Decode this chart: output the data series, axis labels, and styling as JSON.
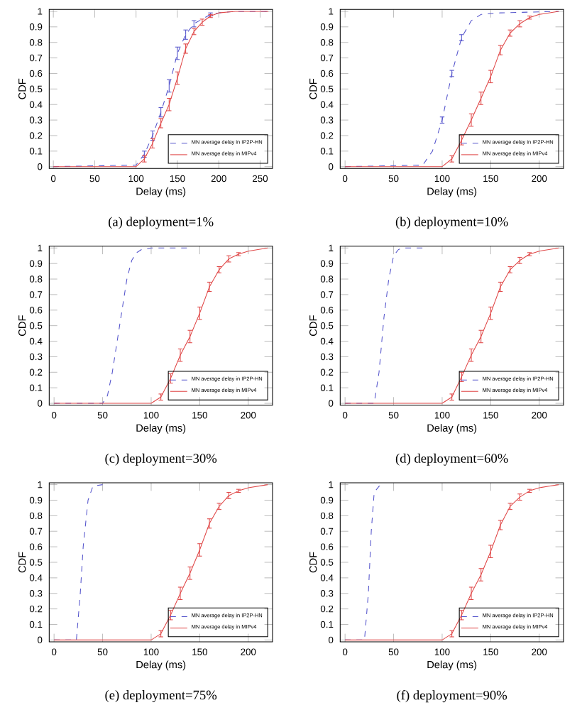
{
  "chart_data": [
    {
      "type": "line",
      "annotations": [
        "(a) deployment=1%"
      ],
      "xlabel": "Delay (ms)",
      "ylabel": "CDF",
      "xlim": [
        -5,
        265
      ],
      "xticks": [
        0,
        50,
        100,
        150,
        200,
        250
      ],
      "ylim": [
        0,
        1
      ],
      "yticks": [
        0,
        0.1,
        0.2,
        0.3,
        0.4,
        0.5,
        0.6,
        0.7,
        0.8,
        0.9,
        1
      ],
      "legend": "bottom right",
      "series": [
        {
          "name": "MN average delay in IP2P-HN",
          "color": "#5555cc",
          "line_style": "dashed",
          "x": [
            0,
            100,
            110,
            120,
            130,
            140,
            150,
            160,
            170,
            180,
            190,
            200,
            220,
            260
          ],
          "values": [
            0,
            0.01,
            0.08,
            0.2,
            0.35,
            0.52,
            0.73,
            0.85,
            0.92,
            0.95,
            0.98,
            0.99,
            1,
            1
          ],
          "errors": [
            null,
            null,
            0.02,
            0.03,
            0.03,
            0.04,
            0.04,
            0.03,
            0.02,
            null,
            0.01,
            null,
            null,
            null
          ]
        },
        {
          "name": "MN average delay in MIPv4",
          "color": "#e04848",
          "line_style": "solid",
          "x": [
            0,
            100,
            110,
            120,
            130,
            140,
            150,
            160,
            170,
            180,
            190,
            200,
            220,
            260
          ],
          "values": [
            0,
            0,
            0.05,
            0.15,
            0.28,
            0.4,
            0.57,
            0.76,
            0.87,
            0.93,
            0.97,
            0.99,
            1,
            1
          ],
          "errors": [
            null,
            null,
            0.02,
            0.03,
            0.03,
            0.04,
            0.04,
            0.03,
            0.02,
            0.02,
            0.01,
            null,
            null,
            null
          ]
        }
      ]
    },
    {
      "type": "line",
      "annotations": [
        "(b) deployment=10%"
      ],
      "xlabel": "Delay (ms)",
      "ylabel": "CDF",
      "xlim": [
        -5,
        225
      ],
      "xticks": [
        0,
        50,
        100,
        150,
        200
      ],
      "ylim": [
        0,
        1
      ],
      "yticks": [
        0,
        0.1,
        0.2,
        0.3,
        0.4,
        0.5,
        0.6,
        0.7,
        0.8,
        0.9,
        1
      ],
      "legend": "bottom right",
      "series": [
        {
          "name": "MN average delay in IP2P-HN",
          "color": "#5555cc",
          "line_style": "dashed",
          "x": [
            0,
            80,
            90,
            100,
            110,
            120,
            130,
            140,
            160,
            220
          ],
          "values": [
            0,
            0.01,
            0.1,
            0.3,
            0.6,
            0.83,
            0.94,
            0.98,
            0.99,
            1
          ],
          "errors": [
            null,
            null,
            null,
            0.02,
            0.02,
            0.02,
            null,
            null,
            null,
            null
          ]
        },
        {
          "name": "MN average delay in MIPv4",
          "color": "#e04848",
          "line_style": "solid",
          "x": [
            0,
            100,
            110,
            120,
            130,
            140,
            150,
            160,
            170,
            180,
            190,
            200,
            220
          ],
          "values": [
            0,
            0,
            0.05,
            0.17,
            0.3,
            0.44,
            0.58,
            0.75,
            0.86,
            0.92,
            0.96,
            0.98,
            1
          ],
          "errors": [
            null,
            null,
            0.02,
            0.03,
            0.04,
            0.04,
            0.04,
            0.03,
            0.02,
            0.02,
            0.01,
            null,
            null
          ]
        }
      ]
    },
    {
      "type": "line",
      "annotations": [
        "(c) deployment=30%"
      ],
      "xlabel": "Delay (ms)",
      "ylabel": "CDF",
      "xlim": [
        -5,
        225
      ],
      "xticks": [
        0,
        50,
        100,
        150,
        200
      ],
      "ylim": [
        0,
        1
      ],
      "yticks": [
        0,
        0.1,
        0.2,
        0.3,
        0.4,
        0.5,
        0.6,
        0.7,
        0.8,
        0.9,
        1
      ],
      "legend": "bottom right",
      "series": [
        {
          "name": "MN average delay in IP2P-HN",
          "color": "#5555cc",
          "line_style": "dashed",
          "x": [
            0,
            50,
            55,
            60,
            65,
            70,
            75,
            80,
            85,
            90,
            100,
            140
          ],
          "values": [
            0,
            0,
            0.05,
            0.2,
            0.4,
            0.6,
            0.8,
            0.92,
            0.97,
            0.99,
            1,
            1
          ]
        },
        {
          "name": "MN average delay in MIPv4",
          "color": "#e04848",
          "line_style": "solid",
          "x": [
            0,
            100,
            110,
            120,
            130,
            140,
            150,
            160,
            170,
            180,
            190,
            200,
            210,
            220
          ],
          "values": [
            0,
            0,
            0.04,
            0.16,
            0.31,
            0.43,
            0.58,
            0.75,
            0.86,
            0.93,
            0.96,
            0.98,
            0.99,
            1
          ],
          "errors": [
            null,
            null,
            0.02,
            0.03,
            0.04,
            0.04,
            0.04,
            0.03,
            0.02,
            0.02,
            0.01,
            null,
            null,
            null
          ]
        }
      ]
    },
    {
      "type": "line",
      "annotations": [
        "(d) deployment=60%"
      ],
      "xlabel": "Delay (ms)",
      "ylabel": "CDF",
      "xlim": [
        -5,
        225
      ],
      "xticks": [
        0,
        50,
        100,
        150,
        200
      ],
      "ylim": [
        0,
        1
      ],
      "yticks": [
        0,
        0.1,
        0.2,
        0.3,
        0.4,
        0.5,
        0.6,
        0.7,
        0.8,
        0.9,
        1
      ],
      "legend": "bottom right",
      "series": [
        {
          "name": "MN average delay in IP2P-HN",
          "color": "#5555cc",
          "line_style": "dashed",
          "x": [
            0,
            30,
            35,
            40,
            45,
            50,
            55,
            60,
            80
          ],
          "values": [
            0,
            0,
            0.2,
            0.55,
            0.8,
            0.95,
            0.99,
            1,
            1
          ]
        },
        {
          "name": "MN average delay in MIPv4",
          "color": "#e04848",
          "line_style": "solid",
          "x": [
            0,
            100,
            110,
            120,
            130,
            140,
            150,
            160,
            170,
            180,
            190,
            200,
            210,
            220
          ],
          "values": [
            0,
            0,
            0.04,
            0.17,
            0.31,
            0.43,
            0.58,
            0.75,
            0.86,
            0.92,
            0.96,
            0.98,
            0.99,
            1
          ],
          "errors": [
            null,
            null,
            0.02,
            0.03,
            0.04,
            0.04,
            0.04,
            0.03,
            0.02,
            0.02,
            0.01,
            null,
            null,
            null
          ]
        }
      ]
    },
    {
      "type": "line",
      "annotations": [
        "(e) deployment=75%"
      ],
      "xlabel": "Delay (ms)",
      "ylabel": "CDF",
      "xlim": [
        -5,
        225
      ],
      "xticks": [
        0,
        50,
        100,
        150,
        200
      ],
      "ylim": [
        0,
        1
      ],
      "yticks": [
        0,
        0.1,
        0.2,
        0.3,
        0.4,
        0.5,
        0.6,
        0.7,
        0.8,
        0.9,
        1
      ],
      "legend": "bottom right",
      "series": [
        {
          "name": "MN average delay in IP2P-HN",
          "color": "#5555cc",
          "line_style": "dashed",
          "x": [
            0,
            23,
            27,
            30,
            35,
            40,
            50
          ],
          "values": [
            0,
            0,
            0.3,
            0.6,
            0.9,
            0.99,
            1
          ]
        },
        {
          "name": "MN average delay in MIPv4",
          "color": "#e04848",
          "line_style": "solid",
          "x": [
            0,
            100,
            110,
            120,
            130,
            140,
            150,
            160,
            170,
            180,
            190,
            200,
            210,
            220
          ],
          "values": [
            0,
            0,
            0.04,
            0.16,
            0.3,
            0.43,
            0.58,
            0.75,
            0.86,
            0.93,
            0.96,
            0.98,
            0.99,
            1
          ],
          "errors": [
            null,
            null,
            0.02,
            0.03,
            0.04,
            0.04,
            0.04,
            0.03,
            0.02,
            0.02,
            0.01,
            null,
            null,
            null
          ]
        }
      ]
    },
    {
      "type": "line",
      "annotations": [
        "(f) deployment=90%"
      ],
      "xlabel": "Delay (ms)",
      "ylabel": "CDF",
      "xlim": [
        -5,
        225
      ],
      "xticks": [
        0,
        50,
        100,
        150,
        200
      ],
      "ylim": [
        0,
        1
      ],
      "yticks": [
        0,
        0.1,
        0.2,
        0.3,
        0.4,
        0.5,
        0.6,
        0.7,
        0.8,
        0.9,
        1
      ],
      "legend": "bottom right",
      "series": [
        {
          "name": "MN average delay in IP2P-HN",
          "color": "#5555cc",
          "line_style": "dashed",
          "x": [
            0,
            20,
            24,
            27,
            30,
            35,
            40
          ],
          "values": [
            0,
            0,
            0.3,
            0.7,
            0.95,
            0.99,
            1
          ]
        },
        {
          "name": "MN average delay in MIPv4",
          "color": "#e04848",
          "line_style": "solid",
          "x": [
            0,
            100,
            110,
            120,
            130,
            140,
            150,
            160,
            170,
            180,
            190,
            200,
            210,
            220
          ],
          "values": [
            0,
            0,
            0.04,
            0.16,
            0.3,
            0.42,
            0.57,
            0.74,
            0.86,
            0.92,
            0.96,
            0.98,
            0.99,
            1
          ],
          "errors": [
            null,
            null,
            0.02,
            0.03,
            0.04,
            0.04,
            0.04,
            0.03,
            0.02,
            0.02,
            0.01,
            null,
            null,
            null
          ]
        }
      ]
    }
  ]
}
